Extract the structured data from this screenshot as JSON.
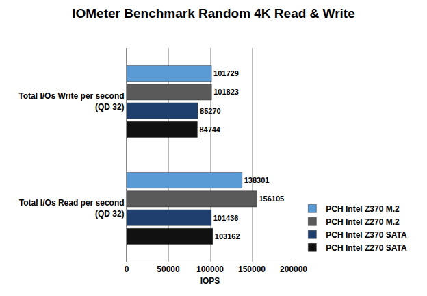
{
  "chart_data": {
    "type": "bar",
    "orientation": "horizontal",
    "title": "IOMeter Benchmark Random 4K Read & Write",
    "x_label": "IOPS",
    "categories": [
      "Total I/Os Write per second (QD 32)",
      "Total I/Os Read per second (QD 32)"
    ],
    "series": [
      {
        "name": "PCH Intel Z370 M.2",
        "color": "#5b9bd5",
        "values": [
          101729,
          138301
        ]
      },
      {
        "name": "PCH Intel Z270 M.2",
        "color": "#5a5a5a",
        "values": [
          101823,
          156105
        ]
      },
      {
        "name": "PCH Intel Z370 SATA",
        "color": "#1f3f6e",
        "values": [
          85270,
          101436
        ]
      },
      {
        "name": "PCH Intel Z270 SATA",
        "color": "#111111",
        "values": [
          84744,
          103162
        ]
      }
    ],
    "xlim": [
      0,
      200000
    ],
    "xticks": [
      0,
      50000,
      100000,
      150000,
      200000
    ],
    "grid": true,
    "legend": "right",
    "data_labels": true
  }
}
